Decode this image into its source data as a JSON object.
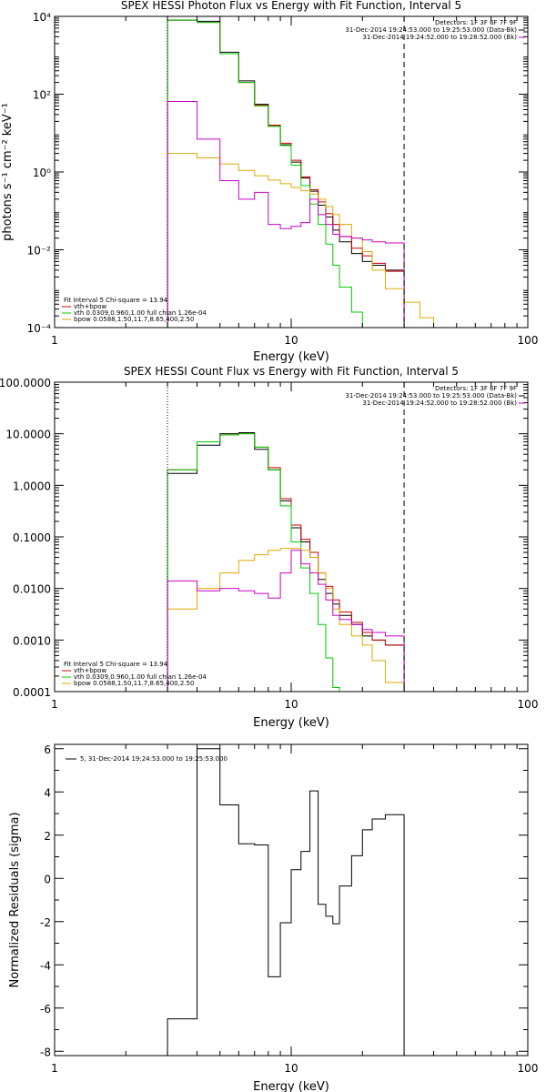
{
  "colors": {
    "background": "#ffffff",
    "axes": "#000000",
    "data": "#000000",
    "model_total": "#cc0000",
    "vth": "#00cc00",
    "bpow": "#ddaa00",
    "background_spectrum": "#cc00cc"
  },
  "chart_data": [
    {
      "type": "line",
      "drawstyle": "steps",
      "title": "SPEX HESSI Photon Flux vs Energy with Fit Function, Interval 5",
      "xlabel": "Energy (keV)",
      "ylabel": "photons s⁻¹ cm⁻² keV⁻¹",
      "xscale": "log",
      "yscale": "log",
      "xlim": [
        1,
        100
      ],
      "ylim": [
        0.0001,
        10000
      ],
      "xticks": [
        1,
        10,
        100
      ],
      "xtick_labels": [
        "1",
        "10",
        "100"
      ],
      "yticks": [
        0.0001,
        0.01,
        1,
        100,
        10000
      ],
      "ytick_labels": [
        "10⁻⁴",
        "10⁻²",
        "10⁰",
        "10²",
        "10⁴"
      ],
      "legend_header": [
        "Detectors: 1F 3F 6F 7F 9F",
        "31-Dec-2014 19:24:53.000 to 19:25:53.000 (Data-Bk)",
        "31-Dec-2014 19:24:52.000 to 19:28:52.000 (Bk)"
      ],
      "fit_info": [
        "Fit Interval 5   Chi-square = 13.94",
        "vth+bpow",
        "vth 0.0309,0.960,1.00  full chian 1.26e-04",
        "bpow 0.0588,1.50,11.7,8.65,400,2.50"
      ],
      "vlines": [
        {
          "x": 3.0,
          "style": "dotted"
        },
        {
          "x": 30,
          "style": "dashed"
        }
      ],
      "bin_edges": [
        3.0,
        4.0,
        5.0,
        6.0,
        7.0,
        8.0,
        9.0,
        10.0,
        11.0,
        12.0,
        13.0,
        14.0,
        15.0,
        16.0,
        18.0,
        20.0,
        22.0,
        25.0,
        30.0,
        35.0,
        40.0
      ],
      "series": [
        {
          "name": "Data-Bk",
          "color": "#000000",
          "values": [
            8000,
            7500,
            1200,
            220,
            55,
            15,
            5.0,
            1.8,
            0.7,
            0.32,
            0.14,
            0.07,
            0.032,
            0.016,
            0.008,
            0.005,
            0.004,
            0.003
          ]
        },
        {
          "name": "vth+bpow",
          "color": "#cc0000",
          "values": [
            8000,
            7000,
            1100,
            200,
            52,
            16,
            5.5,
            2.0,
            0.75,
            0.35,
            0.17,
            0.085,
            0.045,
            0.022,
            0.011,
            0.007,
            0.0045,
            0.0028
          ]
        },
        {
          "name": "vth",
          "color": "#00cc00",
          "values": [
            8000,
            7000,
            1100,
            200,
            50,
            15,
            4.8,
            1.5,
            0.45,
            0.15,
            0.045,
            0.014,
            0.004,
            0.0011,
            0.00025,
            5e-05
          ]
        },
        {
          "name": "bpow",
          "color": "#ddaa00",
          "values": [
            3.0,
            2.3,
            1.6,
            1.1,
            0.8,
            0.62,
            0.5,
            0.4,
            0.33,
            0.27,
            0.2,
            0.13,
            0.08,
            0.045,
            0.02,
            0.009,
            0.003,
            0.001,
            0.00045,
            0.00018
          ]
        },
        {
          "name": "Bk",
          "color": "#cc00cc",
          "values": [
            65,
            7.0,
            0.6,
            0.2,
            0.3,
            0.045,
            0.035,
            0.04,
            0.05,
            0.2,
            0.08,
            0.045,
            0.025,
            0.022,
            0.02,
            0.018,
            0.016,
            0.015
          ]
        }
      ]
    },
    {
      "type": "line",
      "drawstyle": "steps",
      "title": "SPEX HESSI Count Flux vs Energy with Fit Function, Interval 5",
      "xlabel": "Energy (keV)",
      "ylabel": "",
      "xscale": "log",
      "yscale": "log",
      "xlim": [
        1,
        100
      ],
      "ylim": [
        0.0001,
        100
      ],
      "xticks": [
        1,
        10,
        100
      ],
      "xtick_labels": [
        "1",
        "10",
        "100"
      ],
      "yticks": [
        0.0001,
        0.001,
        0.01,
        0.1,
        1,
        10,
        100
      ],
      "ytick_labels": [
        "0.0001",
        "0.0010",
        "0.0100",
        "0.1000",
        "1.0000",
        "10.0000",
        "100.0000"
      ],
      "legend_header": [
        "Detectors: 1F 3F 6F 7F 9F",
        "31-Dec-2014 19:24:53.000 to 19:25:53.000 (Data-Bk)",
        "31-Dec-2014 19:24:52.000 to 19:28:52.000 (Bk)"
      ],
      "fit_info": [
        "Fit Interval 5   Chi-square = 13.94",
        "vth+bpow",
        "vth 0.0309,0.960,1.00  full chian 1.26e-04",
        "bpow 0.0588,1.50,11.7,8.65,400,2.50"
      ],
      "vlines": [
        {
          "x": 3.0,
          "style": "dotted"
        },
        {
          "x": 30,
          "style": "dashed"
        }
      ],
      "bin_edges": [
        3.0,
        4.0,
        5.0,
        6.0,
        7.0,
        8.0,
        9.0,
        10.0,
        11.0,
        12.0,
        13.0,
        14.0,
        15.0,
        16.0,
        18.0,
        20.0,
        22.0,
        25.0,
        30.0
      ],
      "series": [
        {
          "name": "Data-Bk",
          "color": "#000000",
          "values": [
            1.7,
            6.0,
            10.0,
            10.5,
            5.0,
            2.0,
            0.5,
            0.15,
            0.08,
            0.04,
            0.015,
            0.008,
            0.005,
            0.003,
            0.002,
            0.0012,
            0.001,
            0.0008
          ]
        },
        {
          "name": "vth+bpow",
          "color": "#cc0000",
          "values": [
            2.0,
            7.0,
            9.5,
            10.0,
            5.5,
            2.2,
            0.55,
            0.17,
            0.09,
            0.05,
            0.02,
            0.011,
            0.006,
            0.0035,
            0.0022,
            0.0014,
            0.001,
            0.0008
          ]
        },
        {
          "name": "vth",
          "color": "#00cc00",
          "values": [
            2.0,
            7.0,
            9.5,
            10.0,
            5.5,
            2.0,
            0.4,
            0.08,
            0.025,
            0.008,
            0.002,
            0.00045,
            0.00012
          ]
        },
        {
          "name": "bpow",
          "color": "#ddaa00",
          "values": [
            0.004,
            0.01,
            0.02,
            0.035,
            0.045,
            0.055,
            0.06,
            0.06,
            0.055,
            0.04,
            0.02,
            0.01,
            0.004,
            0.002,
            0.0012,
            0.0008,
            0.0004,
            0.00015
          ]
        },
        {
          "name": "Bk",
          "color": "#cc00cc",
          "values": [
            0.014,
            0.009,
            0.01,
            0.009,
            0.008,
            0.0065,
            0.02,
            0.055,
            0.03,
            0.02,
            0.012,
            0.006,
            0.003,
            0.0025,
            0.002,
            0.0016,
            0.0014,
            0.0012
          ]
        }
      ]
    },
    {
      "type": "line",
      "drawstyle": "steps",
      "title": "",
      "xlabel": "Energy (keV)",
      "ylabel": "Normalized Residuals (sigma)",
      "xscale": "log",
      "yscale": "linear",
      "xlim": [
        1,
        100
      ],
      "ylim": [
        -8.2,
        6.2
      ],
      "xticks": [
        1,
        10,
        100
      ],
      "xtick_labels": [
        "1",
        "10",
        "100"
      ],
      "yticks": [
        -8,
        -6,
        -4,
        -2,
        0,
        2,
        4,
        6
      ],
      "ytick_labels": [
        "-8",
        "-6",
        "-4",
        "-2",
        "0",
        "2",
        "4",
        "6"
      ],
      "legend_entry": "5, 31-Dec-2014 19:24:53.000 to 19:25:53.000",
      "bin_edges": [
        3.0,
        4.0,
        5.0,
        6.0,
        7.0,
        8.0,
        9.0,
        10.0,
        11.0,
        12.0,
        13.0,
        14.0,
        15.0,
        16.0,
        18.0,
        20.0,
        22.0,
        25.0,
        30.0
      ],
      "series": [
        {
          "name": "5, 31-Dec-2014 19:24:53.000 to 19:25:53.000",
          "color": "#000000",
          "values": [
            -6.5,
            6.0,
            3.4,
            1.6,
            1.55,
            -4.55,
            -2.05,
            0.4,
            1.25,
            4.05,
            -1.2,
            -1.75,
            -2.1,
            -0.35,
            1.05,
            2.25,
            2.75,
            2.95
          ]
        }
      ]
    }
  ]
}
